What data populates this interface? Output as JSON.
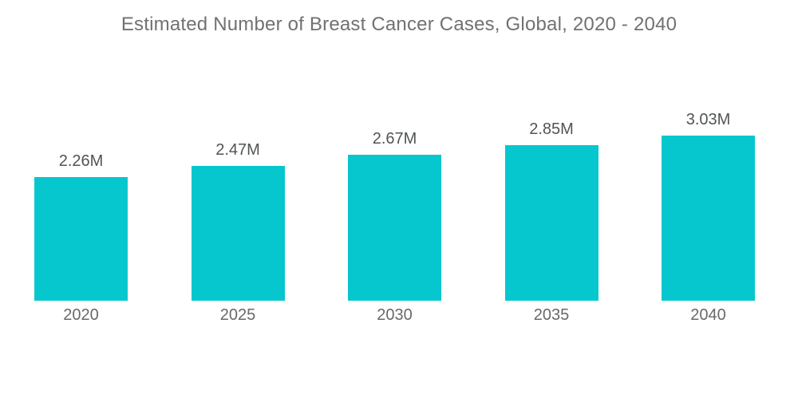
{
  "page": {
    "background_color": "#ffffff"
  },
  "chart_data": {
    "type": "bar",
    "title": "Estimated Number of Breast Cancer Cases, Global, 2020 - 2040",
    "categories": [
      "2020",
      "2025",
      "2030",
      "2035",
      "2040"
    ],
    "values": [
      2.26,
      2.47,
      2.67,
      2.85,
      3.03
    ],
    "value_labels": [
      "2.26M",
      "2.47M",
      "2.67M",
      "2.85M",
      "3.03M"
    ],
    "unit": "M",
    "xlabel": "",
    "ylabel": "",
    "ylim": [
      0,
      3.03
    ],
    "grid": false,
    "legend": false,
    "axes_visible": false,
    "bar_color": "#07c7ce",
    "title_color": "#6f7173",
    "value_label_color": "#515456",
    "category_label_color": "#67696b"
  }
}
